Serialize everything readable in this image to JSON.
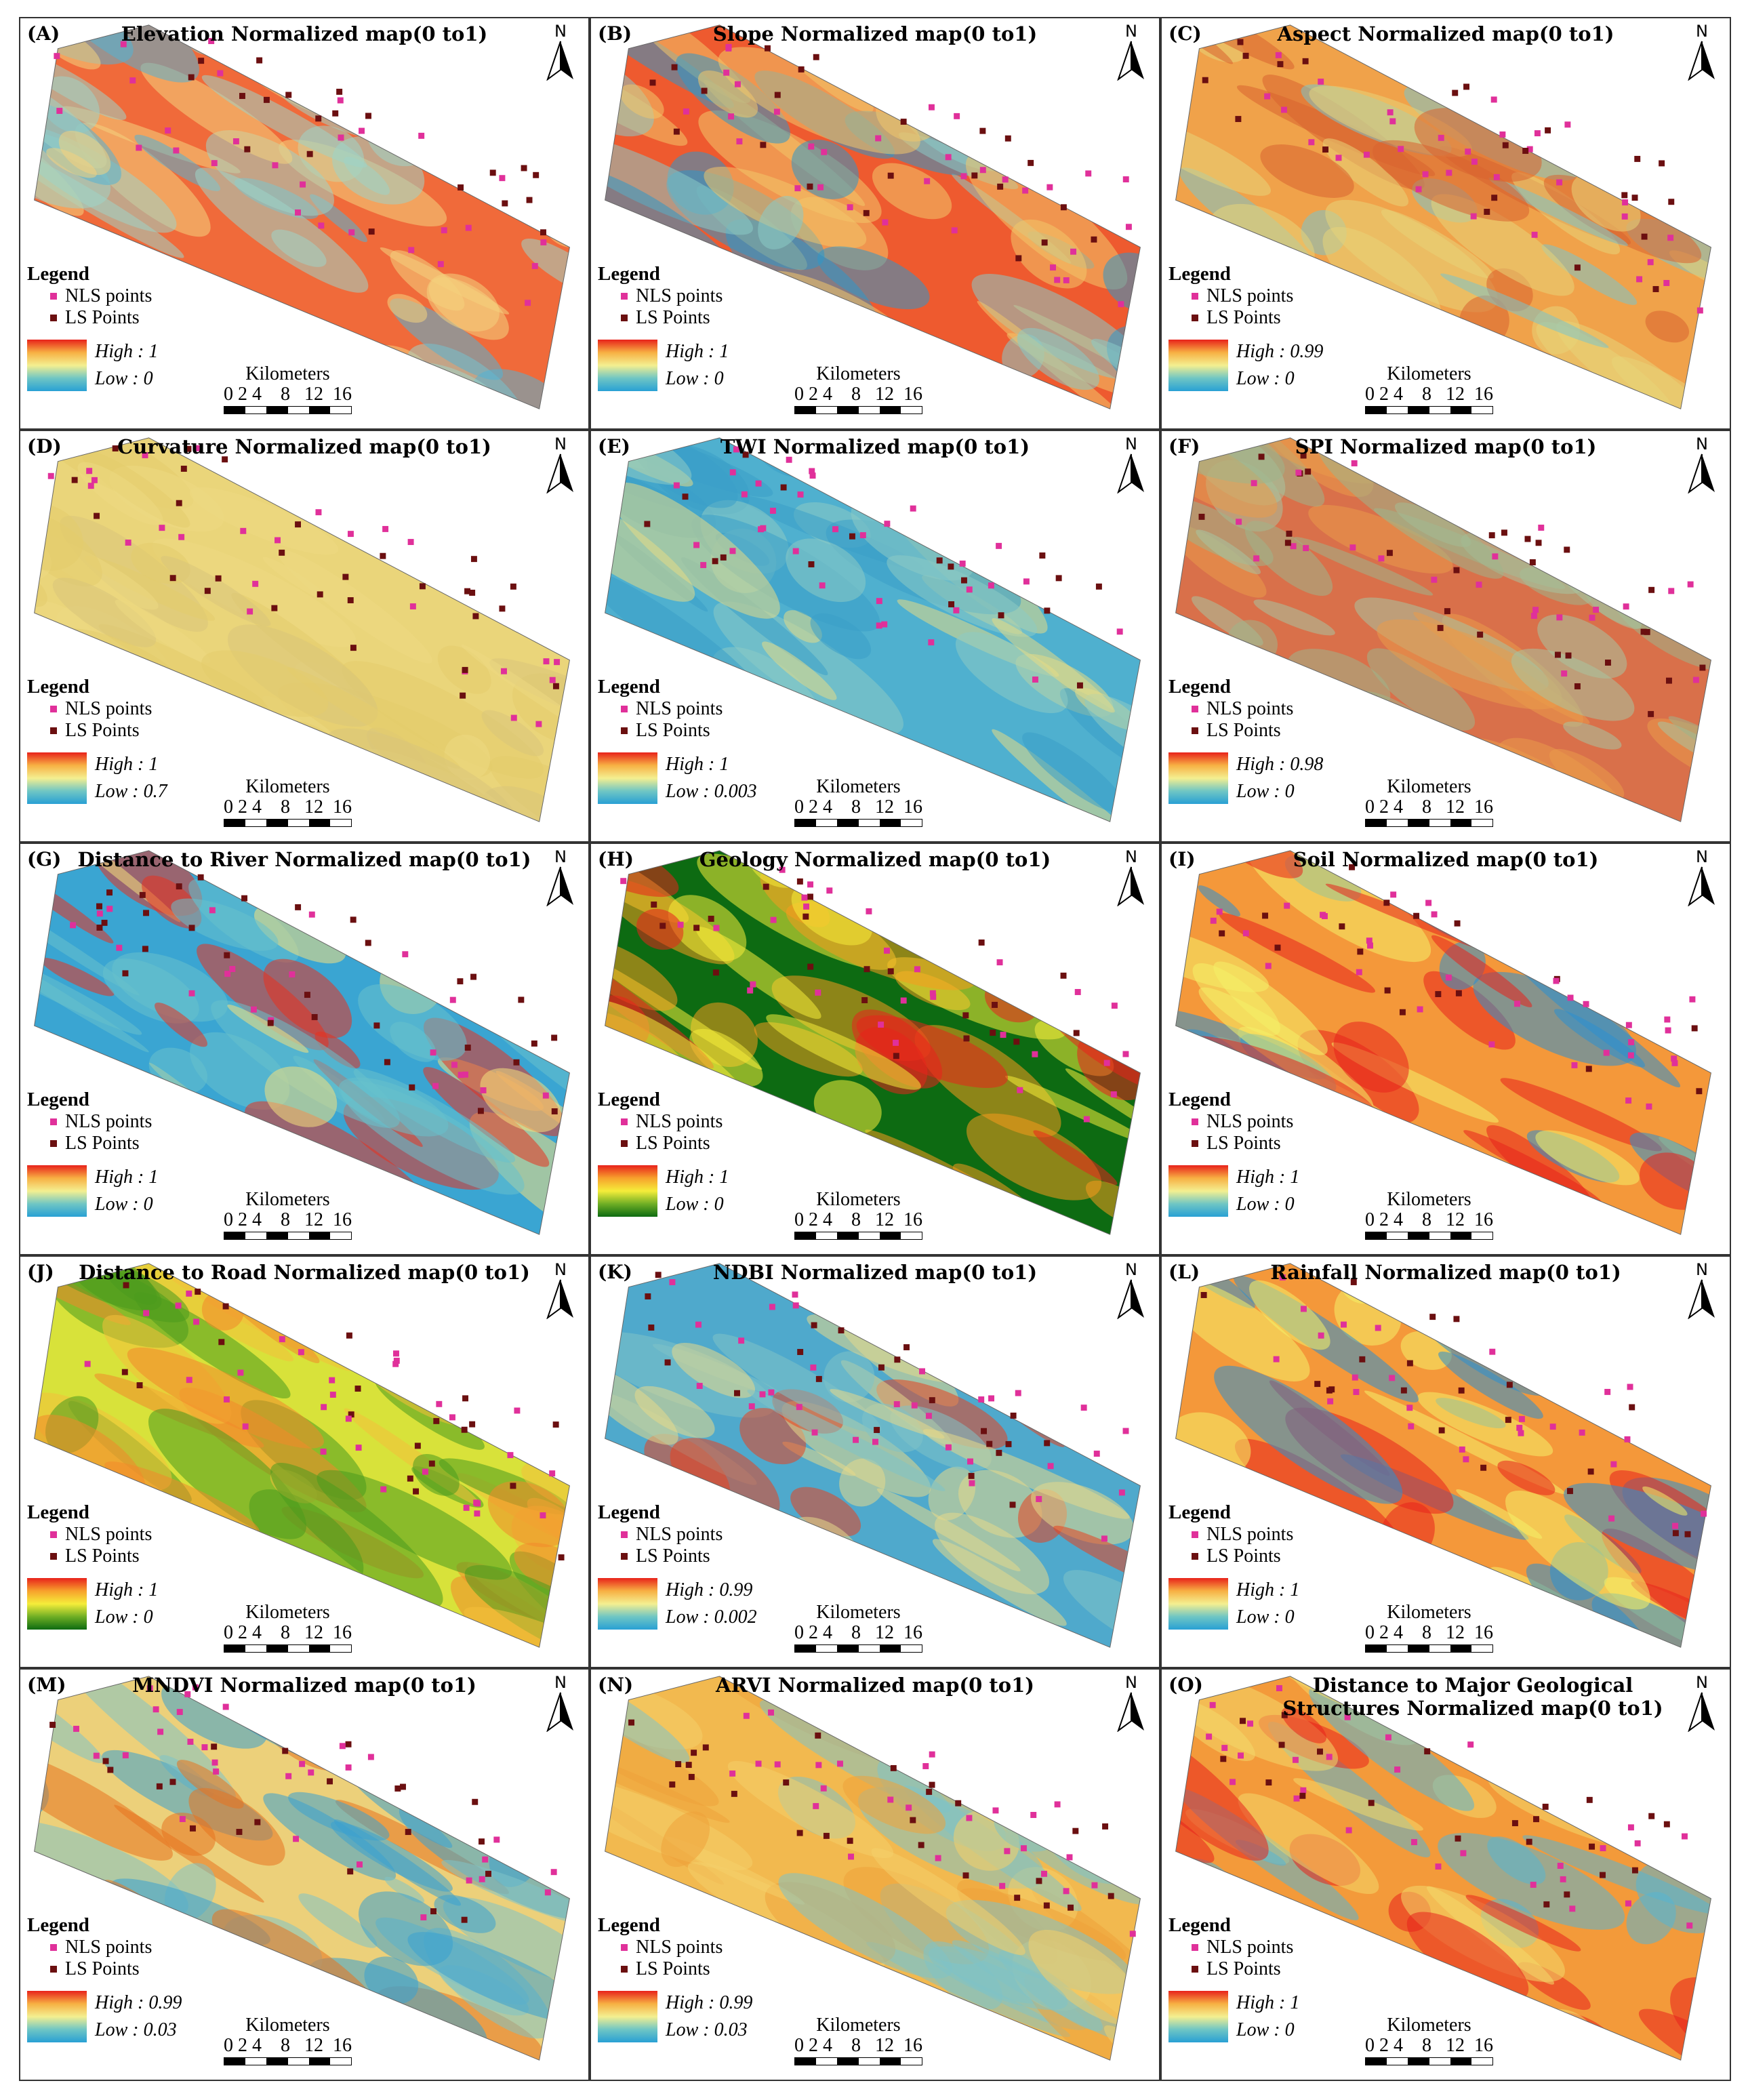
{
  "north_label": "N",
  "legend_title": "Legend",
  "nls_label": "NLS points",
  "ls_label": "LS Points",
  "scale": {
    "unit": "Kilometers",
    "ticks": "0 2 4    8   12  16"
  },
  "colors": {
    "nls": "#e0309a",
    "ls": "#6b0f10"
  },
  "panels": [
    {
      "id": "A",
      "label": "(A)",
      "title": "Elevation Normalized map(0 to1)",
      "high": "High : 1",
      "low": "Low : 0",
      "ramp": [
        "#e8221b",
        "#f7b043",
        "#f4ef90",
        "#6fc6c4",
        "#28a0d4"
      ],
      "fill": [
        "#f06a3a",
        "#f4d27e",
        "#9ed3c6",
        "#54b3d4"
      ]
    },
    {
      "id": "B",
      "label": "(B)",
      "title": "Slope Normalized map(0 to1)",
      "high": "High : 1",
      "low": "Low : 0",
      "ramp": [
        "#e8221b",
        "#f7b043",
        "#f4ef90",
        "#6fc6c4",
        "#28a0d4"
      ],
      "fill": [
        "#ee5a2f",
        "#f2c66a",
        "#8acbc7",
        "#2f97c9"
      ]
    },
    {
      "id": "C",
      "label": "(C)",
      "title": "Aspect Normalized map(0 to1)",
      "high": "High : 0.99",
      "low": "Low : 0",
      "ramp": [
        "#e8221b",
        "#f7b043",
        "#f4ef90",
        "#6fc6c4",
        "#28a0d4"
      ],
      "fill": [
        "#f0a24a",
        "#e8d478",
        "#7cc4cb",
        "#d9632f"
      ]
    },
    {
      "id": "D",
      "label": "(D)",
      "title": "Curvature Normalized map(0 to1)",
      "high": "High : 1",
      "low": "Low : 0.7",
      "ramp": [
        "#e8221b",
        "#f7b043",
        "#f4ef90",
        "#6fc6c4",
        "#28a0d4"
      ],
      "fill": [
        "#ead57a",
        "#e3cc6c",
        "#d9c57a",
        "#ecd982"
      ]
    },
    {
      "id": "E",
      "label": "(E)",
      "title": "TWI Normalized map(0 to1)",
      "high": "High : 1",
      "low": "Low : 0.003",
      "ramp": [
        "#e8221b",
        "#f7b043",
        "#f4ef90",
        "#6fc6c4",
        "#28a0d4"
      ],
      "fill": [
        "#4fb0cf",
        "#8ccbc4",
        "#e4db86",
        "#3a9fc9"
      ]
    },
    {
      "id": "F",
      "label": "(F)",
      "title": "SPI Normalized map(0 to1)",
      "high": "High : 0.98",
      "low": "Low : 0",
      "ramp": [
        "#e8221b",
        "#f7b043",
        "#f4ef90",
        "#6fc6c4",
        "#28a0d4"
      ],
      "fill": [
        "#d9704a",
        "#9fb58a",
        "#e99a4a",
        "#a8c4a0"
      ]
    },
    {
      "id": "G",
      "label": "(G)",
      "title": "Distance to River Normalized map(0 to1)",
      "high": "High : 1",
      "low": "Low : 0",
      "ramp": [
        "#e8221b",
        "#f7b043",
        "#f4ef90",
        "#6fc6c4",
        "#28a0d4"
      ],
      "fill": [
        "#3aa5d2",
        "#f4e07e",
        "#e8321f",
        "#68c1cc"
      ]
    },
    {
      "id": "H",
      "label": "(H)",
      "title": "Geology Normalized map(0 to1)",
      "high": "High : 1",
      "low": "Low : 0",
      "ramp": [
        "#e8221b",
        "#f7a12c",
        "#f5ed3a",
        "#6fae25",
        "#0d6b12"
      ],
      "fill": [
        "#0d6b12",
        "#f5ed3a",
        "#f79a1e",
        "#e8221b"
      ]
    },
    {
      "id": "I",
      "label": "(I)",
      "title": "Soil Normalized map(0 to1)",
      "high": "High : 1",
      "low": "Low : 0",
      "ramp": [
        "#e8221b",
        "#f7b043",
        "#f4ef90",
        "#6fc6c4",
        "#28a0d4"
      ],
      "fill": [
        "#f4983a",
        "#f4f067",
        "#2b8fcf",
        "#e8221b"
      ]
    },
    {
      "id": "J",
      "label": "(J)",
      "title": "Distance to Road Normalized map(0 to1)",
      "high": "High : 1",
      "low": "Low : 0",
      "ramp": [
        "#e8221b",
        "#f7a12c",
        "#f5ed3a",
        "#6fae25",
        "#0d6b12"
      ],
      "fill": [
        "#d8e23a",
        "#4a9a1e",
        "#f4c03a",
        "#f3882a"
      ]
    },
    {
      "id": "K",
      "label": "(K)",
      "title": "NDBI Normalized map(0 to1)",
      "high": "High : 0.99",
      "low": "Low : 0.002",
      "ramp": [
        "#e8221b",
        "#f7b043",
        "#f4ef90",
        "#6fc6c4",
        "#28a0d4"
      ],
      "fill": [
        "#4fa9cc",
        "#e6d98a",
        "#e8421f",
        "#7fc2c6"
      ]
    },
    {
      "id": "L",
      "label": "(L)",
      "title": "Rainfall Normalized map(0 to1)",
      "high": "High : 1",
      "low": "Low : 0",
      "ramp": [
        "#e8221b",
        "#f7b043",
        "#f4ef90",
        "#6fc6c4",
        "#28a0d4"
      ],
      "fill": [
        "#f4983a",
        "#f4f067",
        "#2b8fcf",
        "#e8221b"
      ]
    },
    {
      "id": "M",
      "label": "(M)",
      "title": "MNDVI Normalized map(0 to1)",
      "high": "High : 0.99",
      "low": "Low : 0.03",
      "ramp": [
        "#e8221b",
        "#f7b043",
        "#f4ef90",
        "#6fc6c4",
        "#28a0d4"
      ],
      "fill": [
        "#ecd07a",
        "#7fc2c6",
        "#3aa0cf",
        "#e8721f"
      ]
    },
    {
      "id": "N",
      "label": "(N)",
      "title": "ARVI Normalized map(0 to1)",
      "high": "High : 0.99",
      "low": "Low : 0.03",
      "ramp": [
        "#e8221b",
        "#f7b043",
        "#f4ef90",
        "#6fc6c4",
        "#28a0d4"
      ],
      "fill": [
        "#f2b94f",
        "#f4d06a",
        "#7fc2c6",
        "#efa23a"
      ]
    },
    {
      "id": "O",
      "label": "(O)",
      "title": "Distance to Major Geological Structures Normalized map(0 to1)",
      "high": "High : 1",
      "low": "Low : 0",
      "ramp": [
        "#e8221b",
        "#f7b043",
        "#f4ef90",
        "#6fc6c4",
        "#28a0d4"
      ],
      "fill": [
        "#f39a3a",
        "#e8221b",
        "#f2d86a",
        "#58b4d2"
      ]
    }
  ]
}
